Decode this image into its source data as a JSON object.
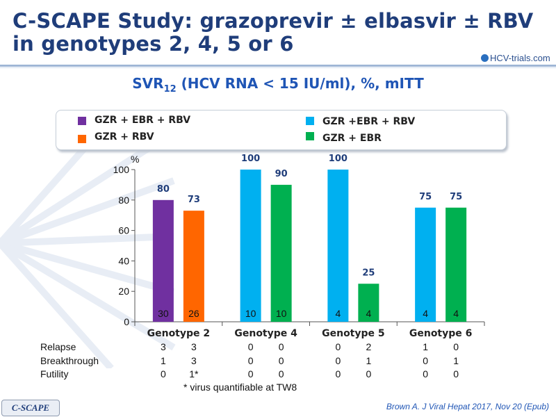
{
  "header": {
    "title_line1": "C-SCAPE Study: grazoprevir ± elbasvir ± RBV",
    "title_line2": "in genotypes 2, 4, 5 or 6",
    "logo_text": "HCV-trials.com"
  },
  "subtitle": {
    "prefix": "SVR",
    "sub": "12",
    "suffix": " (HCV RNA < 15 IU/ml), %, mITT"
  },
  "legend": {
    "items": [
      {
        "label": "GZR + EBR + RBV",
        "color": "#7030a0"
      },
      {
        "label": "GZR + RBV",
        "color": "#ff6600"
      },
      {
        "label": "GZR +EBR + RBV",
        "color": "#00b0f0"
      },
      {
        "label": "GZR + EBR",
        "color": "#00b050"
      }
    ]
  },
  "chart_data": {
    "type": "bar",
    "ylabel": "%",
    "ylim": [
      0,
      100
    ],
    "yticks": [
      0,
      20,
      40,
      60,
      80,
      100
    ],
    "categories": [
      "Genotype 2",
      "Genotype 4",
      "Genotype 5",
      "Genotype 6"
    ],
    "groups": [
      {
        "category": "Genotype 2",
        "bars": [
          {
            "series": "GZR + EBR + RBV",
            "value": 80,
            "n": "30",
            "color": "#7030a0"
          },
          {
            "series": "GZR + RBV",
            "value": 73,
            "n": "26",
            "color": "#ff6600"
          }
        ]
      },
      {
        "category": "Genotype 4",
        "bars": [
          {
            "series": "GZR +EBR + RBV",
            "value": 100,
            "n": "10",
            "color": "#00b0f0"
          },
          {
            "series": "GZR + EBR",
            "value": 90,
            "n": "10",
            "color": "#00b050"
          }
        ]
      },
      {
        "category": "Genotype 5",
        "bars": [
          {
            "series": "GZR +EBR + RBV",
            "value": 100,
            "n": "4",
            "color": "#00b0f0"
          },
          {
            "series": "GZR + EBR",
            "value": 25,
            "n": "4",
            "color": "#00b050"
          }
        ]
      },
      {
        "category": "Genotype 6",
        "bars": [
          {
            "series": "GZR +EBR + RBV",
            "value": 75,
            "n": "4",
            "color": "#00b0f0"
          },
          {
            "series": "GZR + EBR",
            "value": 75,
            "n": "4",
            "color": "#00b050"
          }
        ]
      }
    ],
    "value_label_color": "#1f3d7a"
  },
  "outcomes": {
    "rows": [
      {
        "label": "Relapse",
        "values": [
          "3",
          "3",
          "0",
          "0",
          "0",
          "2",
          "1",
          "0"
        ]
      },
      {
        "label": "Breakthrough",
        "values": [
          "1",
          "3",
          "0",
          "0",
          "0",
          "1",
          "0",
          "1"
        ]
      },
      {
        "label": "Futility",
        "values": [
          "0",
          "1*",
          "0",
          "0",
          "0",
          "0",
          "0",
          "0"
        ]
      }
    ],
    "footnote": "* virus quantifiable at TW8"
  },
  "footer": {
    "badge": "C-SCAPE",
    "citation": "Brown A. J Viral Hepat 2017, Nov 20 (Epub)"
  }
}
